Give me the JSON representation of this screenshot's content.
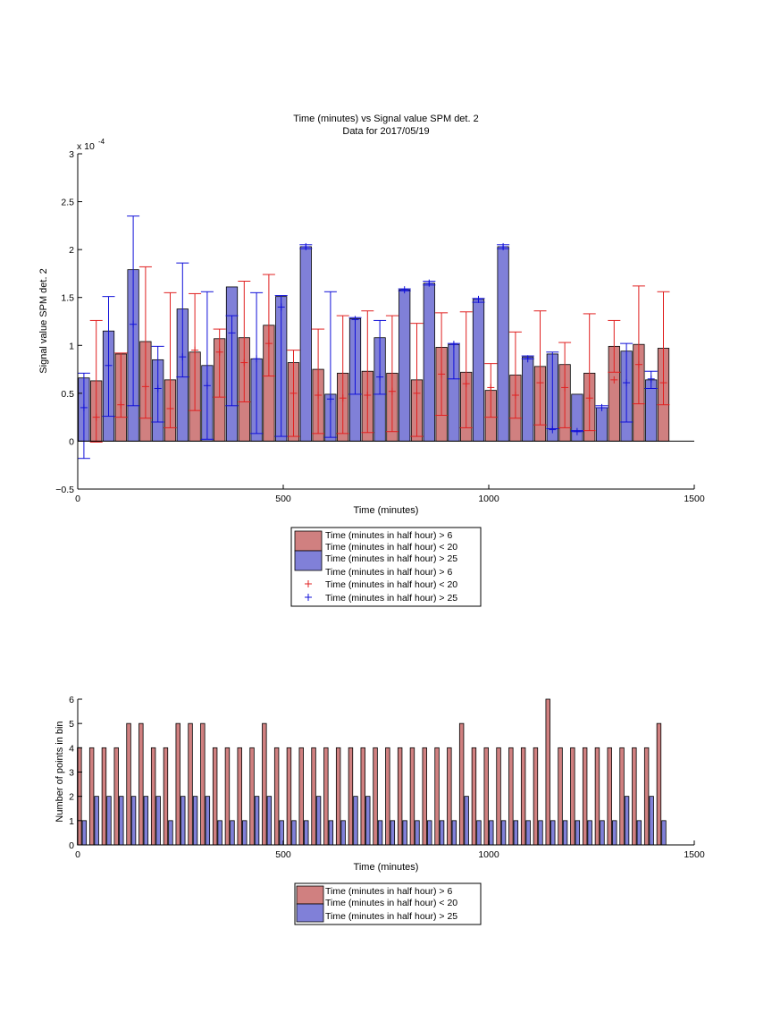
{
  "colors": {
    "red_bar": "#D08080",
    "blue_bar": "#8080D8",
    "red_err": "#E02020",
    "blue_err": "#1010D8",
    "axis": "#000000"
  },
  "chart_data": [
    {
      "type": "bar",
      "title": "Time (minutes) vs Signal value SPM det. 2",
      "subtitle": "Data for 2017/05/19",
      "xlabel": "Time (minutes)",
      "ylabel": "Signal value SPM det. 2",
      "y_exponent_label": "x 10",
      "y_exponent_power": "-4",
      "xlim": [
        0,
        1500
      ],
      "ylim": [
        -0.5,
        3
      ],
      "xticks": [
        "0",
        "500",
        "1000",
        "1500"
      ],
      "yticks": [
        "−0.5",
        "0",
        "0.5",
        "1",
        "1.5",
        "2",
        "2.5",
        "3"
      ],
      "ytick_values": [
        -0.5,
        0,
        0.5,
        1,
        1.5,
        2,
        2.5,
        3
      ],
      "xtick_values": [
        0,
        500,
        1000,
        1500
      ],
      "grid": false,
      "legend_position": "below",
      "legend": [
        "Time (minutes in half hour) > 6",
        "Time (minutes in half hour) < 20",
        "Time (minutes in half hour) > 25",
        "Time (minutes in half hour) > 6",
        "Time (minutes in half hour) < 20",
        "Time (minutes in half hour) > 25"
      ],
      "series": [
        {
          "name": "Time (minutes in half hour) > 6 / < 20",
          "x": [
            45,
            105,
            165,
            225,
            285,
            345,
            405,
            465,
            525,
            585,
            645,
            705,
            765,
            825,
            885,
            945,
            1005,
            1065,
            1125,
            1185,
            1245,
            1305,
            1365,
            1425
          ],
          "values": [
            0.63,
            0.91,
            1.04,
            0.64,
            0.93,
            1.07,
            1.08,
            1.21,
            0.82,
            0.75,
            0.71,
            0.73,
            0.71,
            0.64,
            0.98,
            0.72,
            0.53,
            0.69,
            0.78,
            0.8,
            0.71,
            0.99,
            1.01,
            0.97
          ],
          "err_lower": [
            -0.01,
            0.25,
            0.24,
            0.14,
            0.32,
            0.46,
            0.41,
            0.68,
            0.05,
            0.08,
            0.08,
            0.09,
            0.1,
            0.05,
            0.27,
            0.14,
            0.25,
            0.24,
            0.17,
            0.14,
            0.11,
            0.72,
            0.39,
            0.38
          ],
          "err_upper": [
            1.26,
            0.92,
            1.82,
            1.55,
            1.54,
            1.17,
            1.67,
            1.74,
            0.95,
            1.17,
            1.31,
            1.36,
            1.31,
            1.23,
            1.34,
            1.35,
            0.81,
            1.14,
            1.36,
            1.03,
            1.33,
            1.26,
            1.62,
            1.56
          ],
          "mid_markers": [
            0.25,
            0.38,
            0.57,
            0.34,
            0.95,
            0.93,
            0.82,
            1.02,
            0.5,
            0.48,
            0.45,
            0.48,
            0.52,
            0.5,
            0.7,
            0.6,
            0.56,
            0.48,
            0.61,
            0.56,
            0.45,
            0.64,
            0.8,
            0.61
          ]
        },
        {
          "name": "Time (minutes in half hour) > 25",
          "x": [
            15,
            75,
            135,
            195,
            255,
            315,
            375,
            435,
            495,
            555,
            615,
            675,
            735,
            795,
            855,
            915,
            975,
            1035,
            1095,
            1155,
            1215,
            1275,
            1335,
            1395
          ],
          "values": [
            0.66,
            1.15,
            1.79,
            0.85,
            1.38,
            0.79,
            1.61,
            0.86,
            1.51,
            2.03,
            0.49,
            1.28,
            1.08,
            1.58,
            1.65,
            1.01,
            1.48,
            2.03,
            0.88,
            0.91,
            0.49,
            0.35,
            0.94,
            0.64
          ],
          "err_lower": [
            -0.18,
            0.26,
            0.37,
            0.2,
            0.67,
            0.02,
            0.37,
            0.08,
            0.05,
            2.01,
            0.04,
            0.49,
            0.49,
            1.57,
            1.63,
            0.65,
            1.45,
            2.01,
            0.86,
            0.13,
            0.1,
            0.35,
            0.2,
            0.55
          ],
          "err_upper": [
            0.71,
            1.51,
            2.35,
            0.99,
            1.86,
            1.56,
            1.31,
            1.55,
            1.52,
            2.05,
            1.56,
            1.29,
            1.26,
            1.59,
            1.67,
            1.02,
            1.49,
            2.05,
            0.89,
            0.93,
            0.11,
            0.37,
            1.02,
            0.73
          ],
          "mid_markers": [
            0.35,
            0.79,
            1.22,
            0.55,
            0.88,
            0.58,
            1.13,
            0.86,
            1.4,
            2.03,
            0.44,
            1.27,
            0.67,
            1.58,
            1.65,
            1.01,
            1.48,
            2.03,
            0.86,
            0.12,
            0.1,
            0.35,
            0.61,
            0.65
          ]
        }
      ]
    },
    {
      "type": "bar",
      "title": "",
      "xlabel": "Time (minutes)",
      "ylabel": "Number of points in bin",
      "xlim": [
        0,
        1500
      ],
      "ylim": [
        0,
        6
      ],
      "xticks": [
        "0",
        "500",
        "1000",
        "1500"
      ],
      "xtick_values": [
        0,
        500,
        1000,
        1500
      ],
      "yticks": [
        "0",
        "1",
        "2",
        "3",
        "4",
        "5",
        "6"
      ],
      "ytick_values": [
        0,
        1,
        2,
        3,
        4,
        5,
        6
      ],
      "grid": false,
      "legend_position": "below",
      "legend": [
        "Time (minutes in half hour) > 6",
        "Time (minutes in half hour) < 20",
        "Time (minutes in half hour) > 25"
      ],
      "series": [
        {
          "name": "Time (minutes in half hour) > 6 / < 20",
          "x": [
            4,
            34,
            64,
            94,
            124,
            154,
            184,
            214,
            244,
            274,
            304,
            334,
            364,
            394,
            424,
            454,
            484,
            514,
            544,
            574,
            604,
            634,
            664,
            694,
            724,
            754,
            784,
            814,
            844,
            874,
            904,
            934,
            964,
            994,
            1024,
            1054,
            1084,
            1114,
            1144,
            1174,
            1204,
            1234,
            1264,
            1294,
            1324,
            1354,
            1384,
            1414
          ],
          "values": [
            4,
            4,
            4,
            4,
            5,
            5,
            4,
            4,
            5,
            5,
            5,
            4,
            4,
            4,
            4,
            5,
            4,
            4,
            4,
            4,
            4,
            4,
            4,
            4,
            4,
            4,
            4,
            4,
            4,
            4,
            4,
            5,
            4,
            4,
            4,
            4,
            4,
            4,
            6,
            4,
            4,
            4,
            4,
            4,
            4,
            4,
            4,
            5
          ]
        },
        {
          "name": "Time (minutes in half hour) > 25",
          "x": [
            16,
            46,
            76,
            106,
            136,
            166,
            196,
            226,
            256,
            286,
            316,
            346,
            376,
            406,
            436,
            466,
            496,
            526,
            556,
            586,
            616,
            646,
            676,
            706,
            736,
            766,
            796,
            826,
            856,
            886,
            916,
            946,
            976,
            1006,
            1036,
            1066,
            1096,
            1126,
            1156,
            1186,
            1216,
            1246,
            1276,
            1306,
            1336,
            1366,
            1396,
            1426
          ],
          "values": [
            1,
            2,
            2,
            2,
            2,
            2,
            2,
            1,
            2,
            2,
            2,
            1,
            1,
            1,
            2,
            2,
            1,
            1,
            1,
            2,
            1,
            1,
            2,
            2,
            1,
            1,
            1,
            1,
            1,
            1,
            1,
            2,
            1,
            1,
            1,
            1,
            1,
            1,
            1,
            1,
            1,
            1,
            1,
            1,
            2,
            1,
            2,
            1
          ]
        }
      ]
    }
  ]
}
